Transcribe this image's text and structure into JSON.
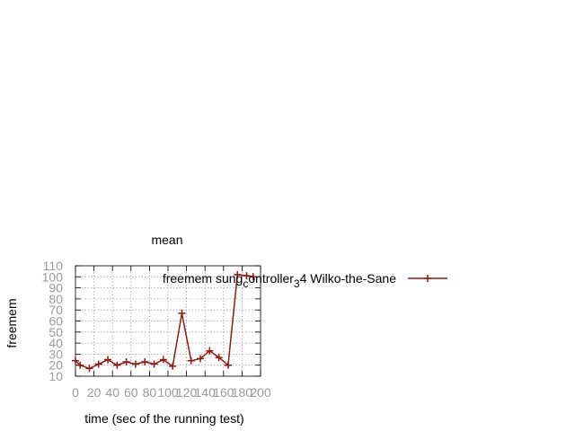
{
  "chart_data": {
    "type": "line",
    "title": "mean",
    "xlabel": "time (sec of the running test)",
    "ylabel": "freemem",
    "xlim": [
      0,
      200
    ],
    "ylim": [
      10,
      110
    ],
    "x_ticks": [
      "0",
      "20",
      "40",
      "60",
      "80",
      "100",
      "120",
      "140",
      "160",
      "180",
      "200"
    ],
    "y_ticks": [
      "10",
      "20",
      "30",
      "40",
      "50",
      "60",
      "70",
      "80",
      "90",
      "100",
      "110"
    ],
    "grid": true,
    "legend_position": "top-right",
    "legend": {
      "base": "freemem sung",
      "sub1": "c",
      "mid": "ontroller",
      "sub2": "3",
      "tail": "4 Wilko-the-Sane"
    },
    "series": [
      {
        "color": "#8b1a10",
        "x": [
          0,
          5,
          15,
          25,
          35,
          45,
          55,
          65,
          75,
          85,
          95,
          105,
          115,
          125,
          135,
          145,
          155,
          165,
          175,
          185,
          192
        ],
        "y": [
          24,
          20,
          17,
          21,
          25,
          20,
          23,
          21,
          23,
          21,
          25,
          19,
          67,
          24,
          26,
          33,
          27,
          20,
          102,
          101,
          100
        ]
      }
    ]
  }
}
